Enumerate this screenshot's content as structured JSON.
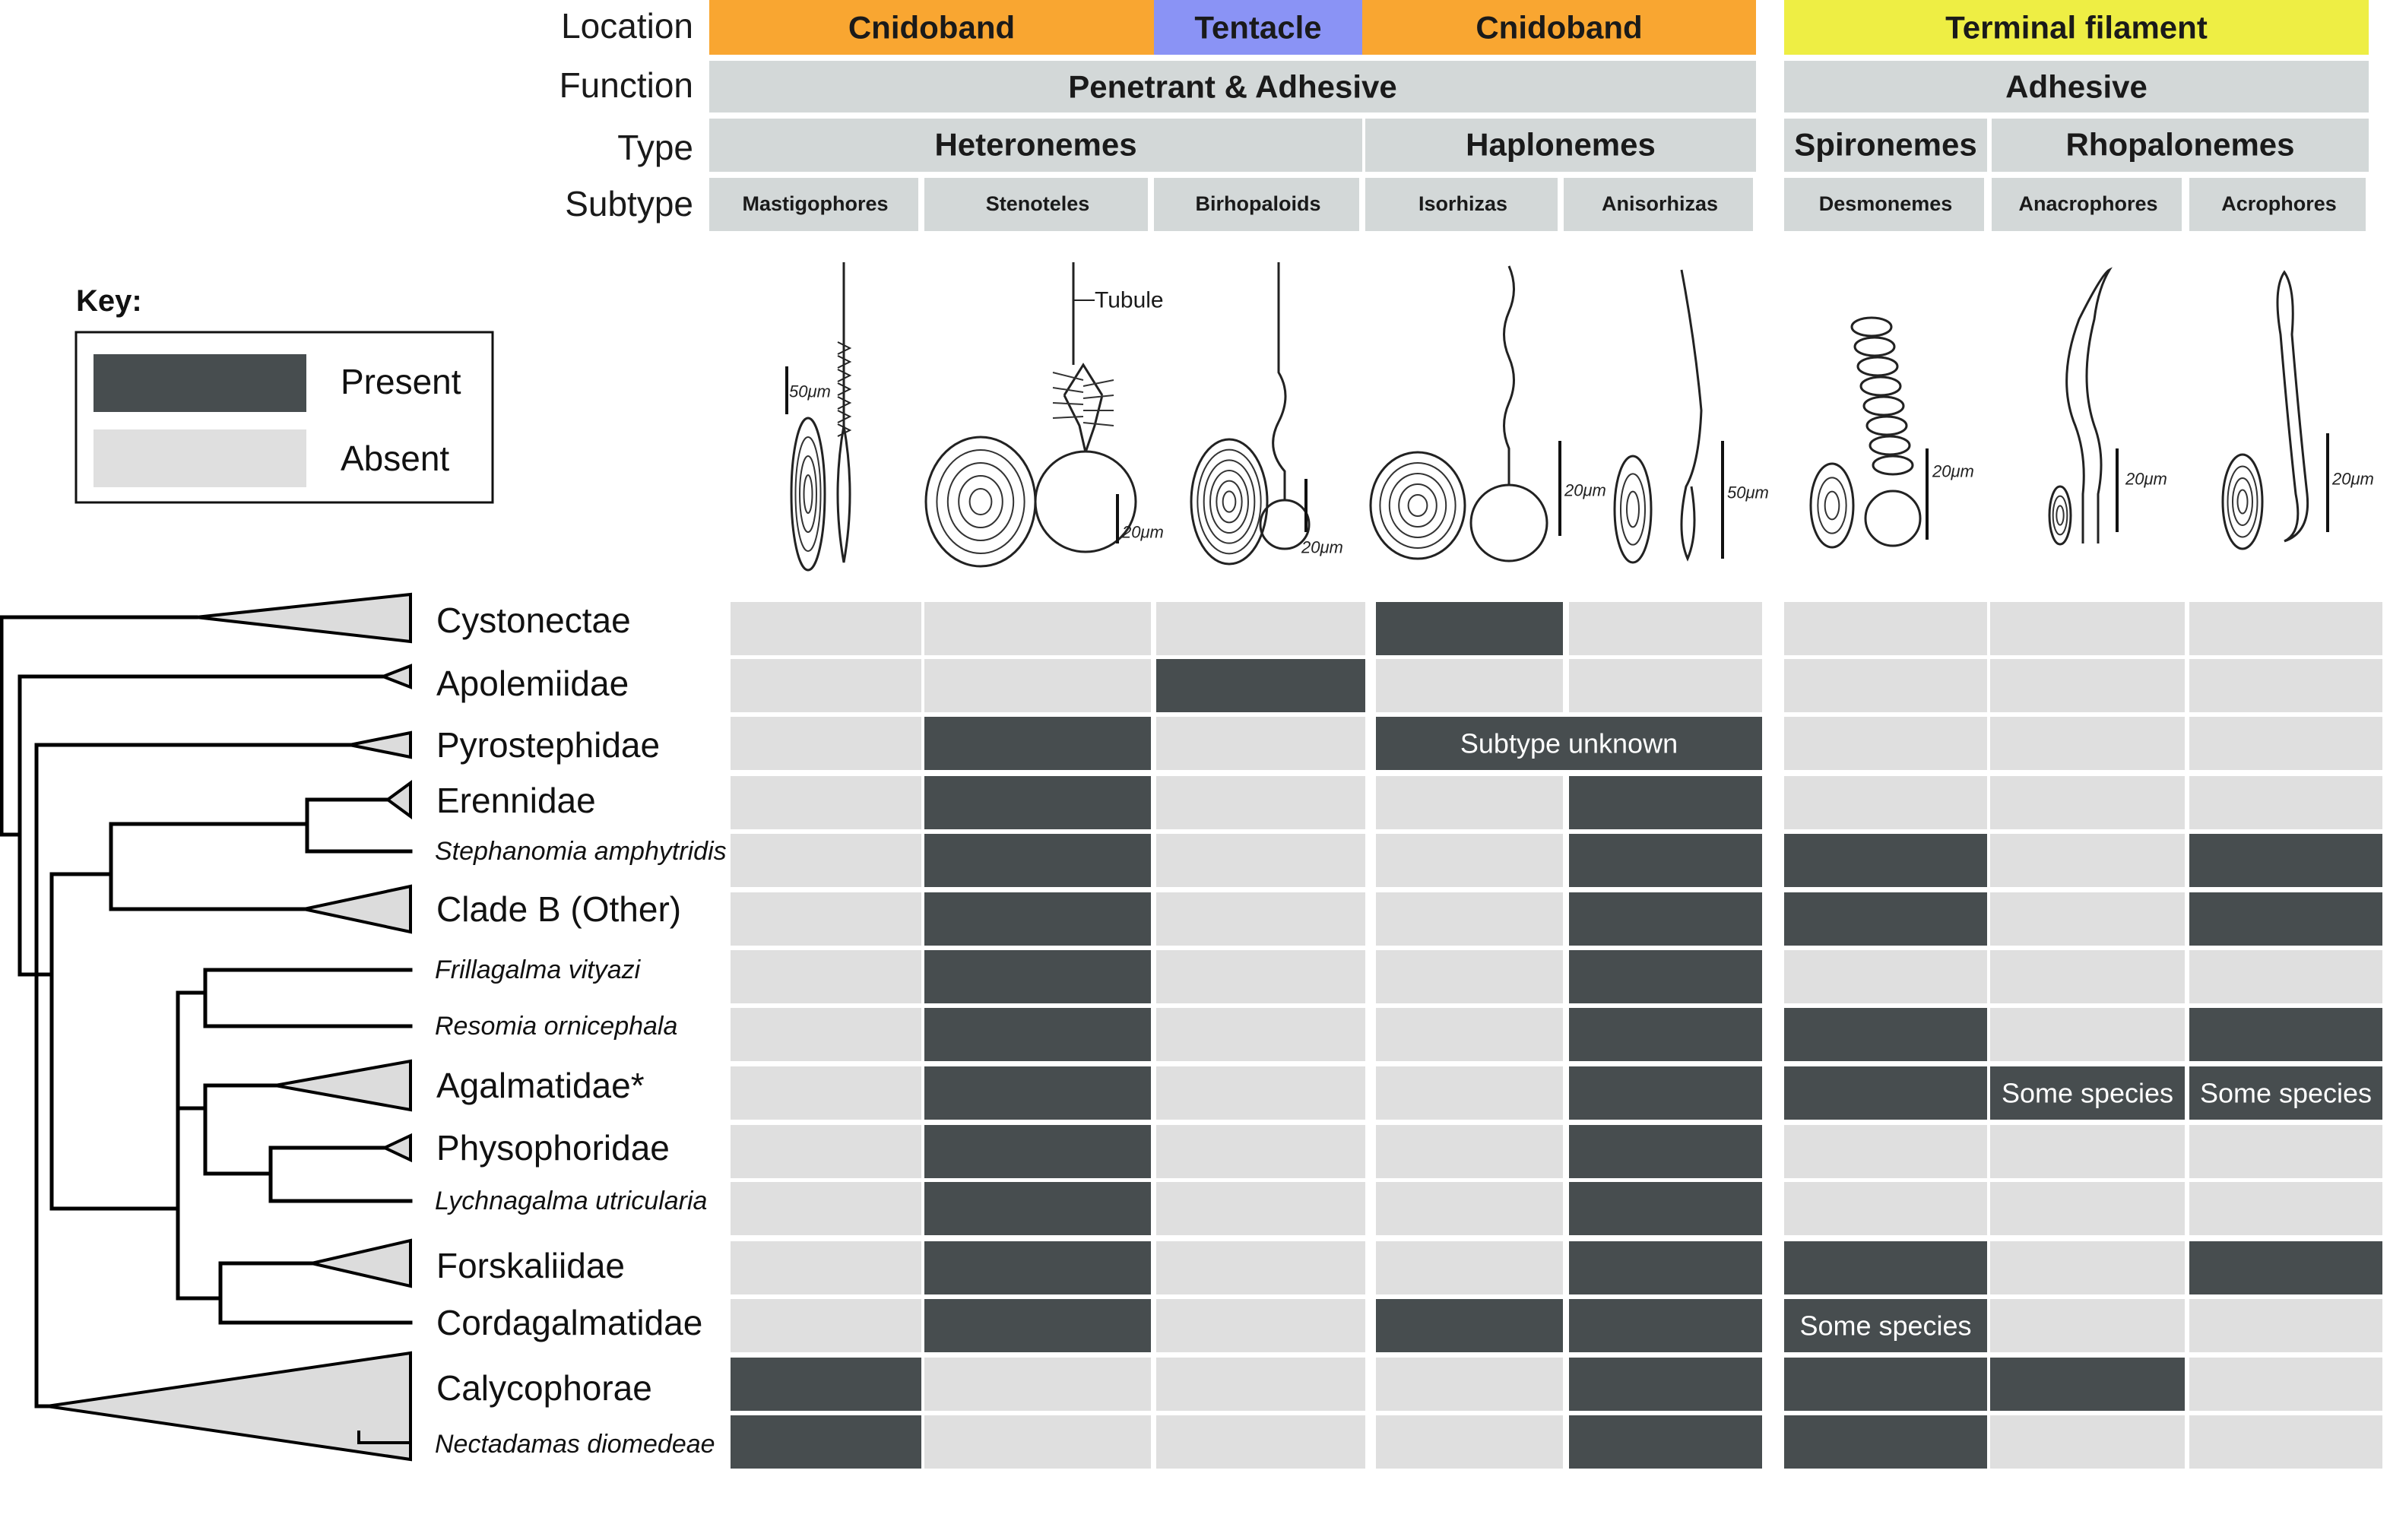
{
  "colors": {
    "present": "#474d4f",
    "absent": "#dfdfdf",
    "header": "#d3d8d8",
    "cnidoband": "#f9a631",
    "tentacle": "#8a93f5",
    "terminal_filament": "#eeee44",
    "tree": "#000000",
    "triangle_fill": "#dcdcdc"
  },
  "header": {
    "row_labels": {
      "location": "Location",
      "function": "Function",
      "type": "Type",
      "subtype": "Subtype"
    },
    "location": [
      {
        "label": "Cnidoband",
        "span": [
          0,
          2
        ]
      },
      {
        "label": "Tentacle",
        "span": [
          2,
          3
        ]
      },
      {
        "label": "Cnidoband",
        "span": [
          3,
          5
        ]
      },
      {
        "label": "Terminal filament",
        "span": [
          5,
          8
        ]
      }
    ],
    "function": [
      {
        "label": "Penetrant & Adhesive",
        "span": [
          0,
          5
        ]
      },
      {
        "label": "Adhesive",
        "span": [
          5,
          8
        ]
      }
    ],
    "type": [
      {
        "label": "Heteronemes",
        "span": [
          0,
          3
        ]
      },
      {
        "label": "Haplonemes",
        "span": [
          3,
          5
        ]
      },
      {
        "label": "Spironemes",
        "span": [
          5,
          6
        ]
      },
      {
        "label": "Rhopalonemes",
        "span": [
          6,
          8
        ]
      }
    ],
    "subtype": [
      "Mastigophores",
      "Stenoteles",
      "Birhopaloids",
      "Isorhizas",
      "Anisorhizas",
      "Desmonemes",
      "Anacrophores",
      "Acrophores"
    ]
  },
  "illustrations": {
    "tubule_label": "Tubule",
    "scale_bars": [
      "50μm",
      "20μm",
      "20μm",
      "20μm",
      "50μm",
      "20μm",
      "20μm",
      "20μm"
    ]
  },
  "key": {
    "title": "Key:",
    "present_label": "Present",
    "absent_label": "Absent"
  },
  "taxa": [
    {
      "name": "Cystonectae",
      "italic": false,
      "cells": [
        0,
        0,
        0,
        1,
        0,
        0,
        0,
        0
      ]
    },
    {
      "name": "Apolemiidae",
      "italic": false,
      "cells": [
        0,
        0,
        1,
        0,
        0,
        0,
        0,
        0
      ]
    },
    {
      "name": "Pyrostephidae",
      "italic": false,
      "cells": [
        0,
        1,
        0,
        1,
        1,
        0,
        0,
        0
      ],
      "merged_note": {
        "span": [
          3,
          5
        ],
        "text": "Subtype unknown"
      }
    },
    {
      "name": "Erennidae",
      "italic": false,
      "cells": [
        0,
        1,
        0,
        0,
        1,
        0,
        0,
        0
      ]
    },
    {
      "name": "Stephanomia amphytridis",
      "italic": true,
      "cells": [
        0,
        1,
        0,
        0,
        1,
        1,
        0,
        1
      ]
    },
    {
      "name": "Clade B (Other)",
      "italic": false,
      "cells": [
        0,
        1,
        0,
        0,
        1,
        1,
        0,
        1
      ]
    },
    {
      "name": "Frillagalma vityazi",
      "italic": true,
      "cells": [
        0,
        1,
        0,
        0,
        1,
        0,
        0,
        0
      ]
    },
    {
      "name": "Resomia ornicephala",
      "italic": true,
      "cells": [
        0,
        1,
        0,
        0,
        1,
        1,
        0,
        1
      ]
    },
    {
      "name": "Agalmatidae*",
      "italic": false,
      "cells": [
        0,
        1,
        0,
        0,
        1,
        1,
        1,
        1
      ],
      "notes": {
        "6": "Some species",
        "7": "Some species"
      }
    },
    {
      "name": "Physophoridae",
      "italic": false,
      "cells": [
        0,
        1,
        0,
        0,
        1,
        0,
        0,
        0
      ]
    },
    {
      "name": "Lychnagalma utricularia",
      "italic": true,
      "cells": [
        0,
        1,
        0,
        0,
        1,
        0,
        0,
        0
      ]
    },
    {
      "name": "Forskaliidae",
      "italic": false,
      "cells": [
        0,
        1,
        0,
        0,
        1,
        1,
        0,
        1
      ]
    },
    {
      "name": "Cordagalmatidae",
      "italic": false,
      "cells": [
        0,
        1,
        0,
        1,
        1,
        1,
        0,
        0
      ],
      "notes": {
        "5": "Some species"
      }
    },
    {
      "name": "Calycophorae",
      "italic": false,
      "cells": [
        1,
        0,
        0,
        0,
        1,
        1,
        1,
        0
      ]
    },
    {
      "name": "Nectadamas diomedeae",
      "italic": true,
      "cells": [
        1,
        0,
        0,
        0,
        1,
        1,
        0,
        0
      ]
    }
  ]
}
